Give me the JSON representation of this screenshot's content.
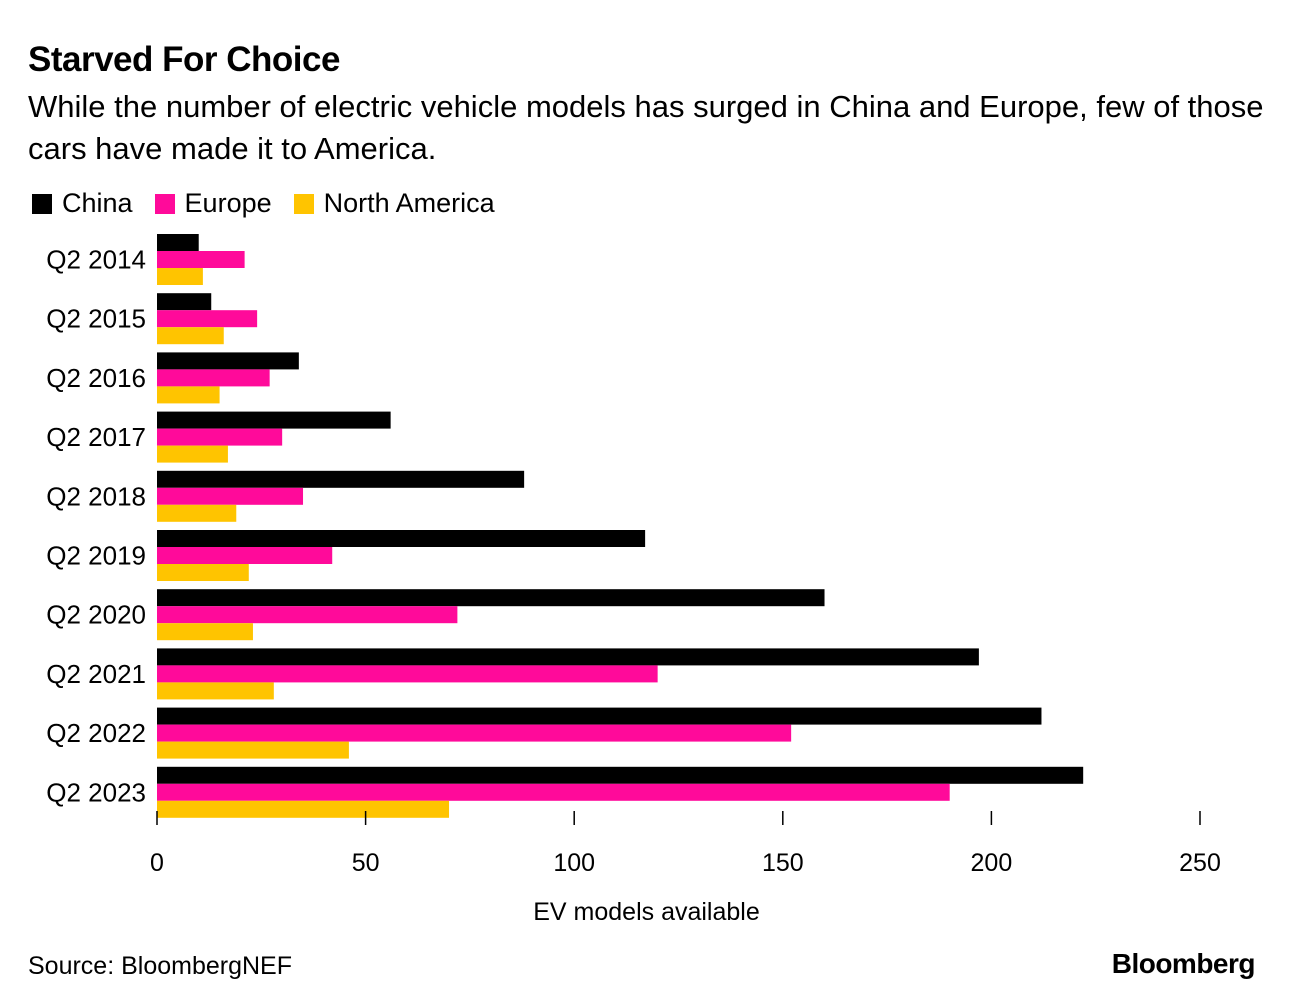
{
  "title": "Starved For Choice",
  "subtitle": "While the number of electric vehicle models has surged in China and Europe, few of those cars have made it to America.",
  "source": "Source: BloombergNEF",
  "brand": "Bloomberg",
  "colors": {
    "china": "#000000",
    "europe": "#ff0a9a",
    "north_america": "#ffc400",
    "axis": "#000000"
  },
  "chart_data": {
    "type": "bar",
    "orientation": "horizontal",
    "title": "Starved For Choice",
    "xlabel": "EV models available",
    "ylabel": "",
    "xlim": [
      0,
      250
    ],
    "xticks": [
      0,
      50,
      100,
      150,
      200,
      250
    ],
    "grid": false,
    "legend_position": "top-left",
    "categories": [
      "Q2 2014",
      "Q2 2015",
      "Q2 2016",
      "Q2 2017",
      "Q2 2018",
      "Q2 2019",
      "Q2 2020",
      "Q2 2021",
      "Q2 2022",
      "Q2 2023"
    ],
    "series": [
      {
        "name": "China",
        "color": "#000000",
        "values": [
          10,
          13,
          34,
          56,
          88,
          117,
          160,
          197,
          212,
          222
        ]
      },
      {
        "name": "Europe",
        "color": "#ff0a9a",
        "values": [
          21,
          24,
          27,
          30,
          35,
          42,
          72,
          120,
          152,
          190
        ]
      },
      {
        "name": "North America",
        "color": "#ffc400",
        "values": [
          11,
          16,
          15,
          17,
          19,
          22,
          23,
          28,
          46,
          70
        ]
      }
    ]
  }
}
